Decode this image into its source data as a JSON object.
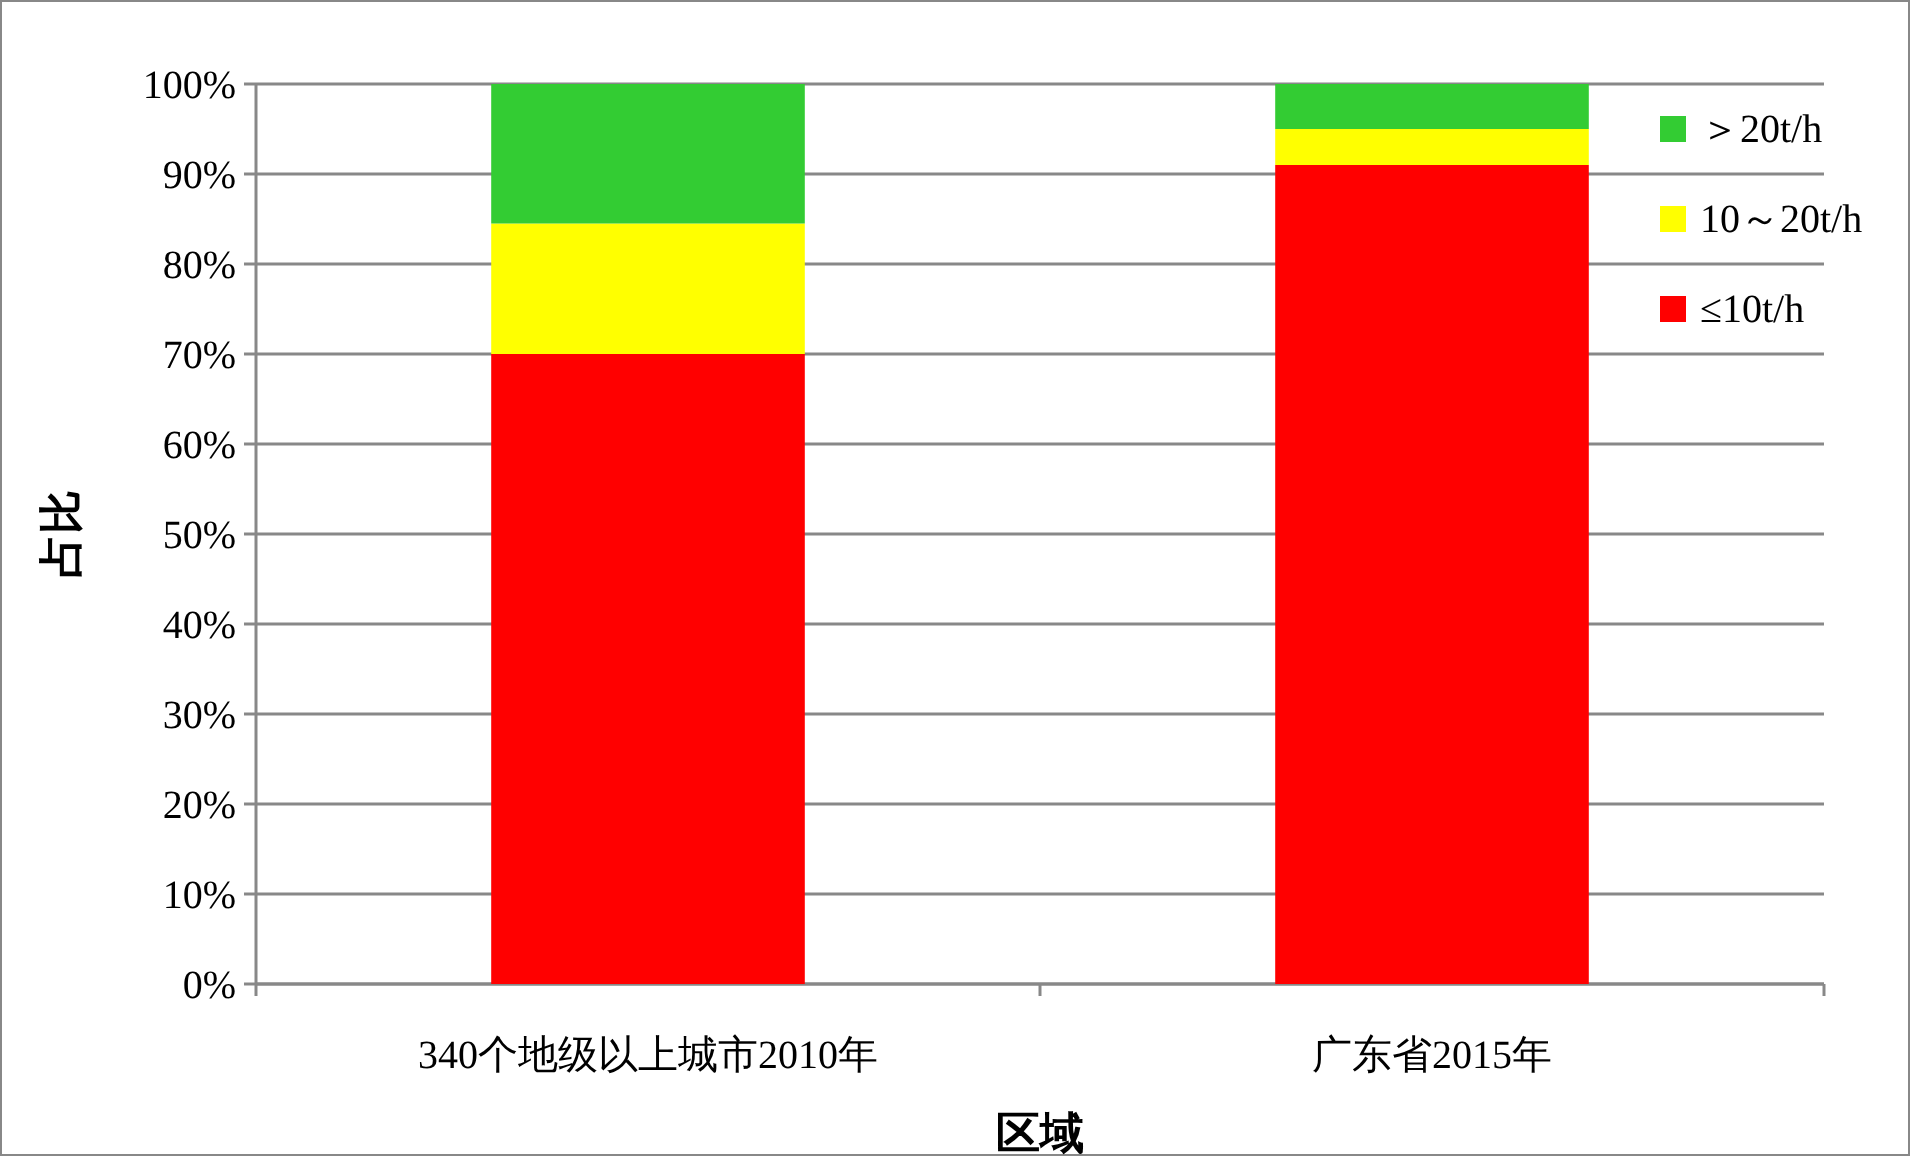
{
  "chart_data": {
    "type": "bar",
    "stacked": true,
    "xlabel": "区域",
    "ylabel": "占比",
    "categories": [
      "340个地级以上城市2010年",
      "广东省2015年"
    ],
    "series": [
      {
        "name": "≤10t/h",
        "color": "#ff0000",
        "values": [
          70,
          91
        ]
      },
      {
        "name": "10～20t/h",
        "color": "#ffff00",
        "values": [
          14.5,
          4
        ]
      },
      {
        "name": "＞20t/h",
        "color": "#33cc33",
        "values": [
          15.5,
          5
        ]
      }
    ],
    "ylim": [
      0,
      100
    ],
    "yticks": [
      {
        "value": 0,
        "label": "0%"
      },
      {
        "value": 10,
        "label": "10%"
      },
      {
        "value": 20,
        "label": "20%"
      },
      {
        "value": 30,
        "label": "30%"
      },
      {
        "value": 40,
        "label": "40%"
      },
      {
        "value": 50,
        "label": "50%"
      },
      {
        "value": 60,
        "label": "60%"
      },
      {
        "value": 70,
        "label": "70%"
      },
      {
        "value": 80,
        "label": "80%"
      },
      {
        "value": 90,
        "label": "90%"
      },
      {
        "value": 100,
        "label": "100%"
      }
    ],
    "grid": "y",
    "legend": "top right"
  }
}
